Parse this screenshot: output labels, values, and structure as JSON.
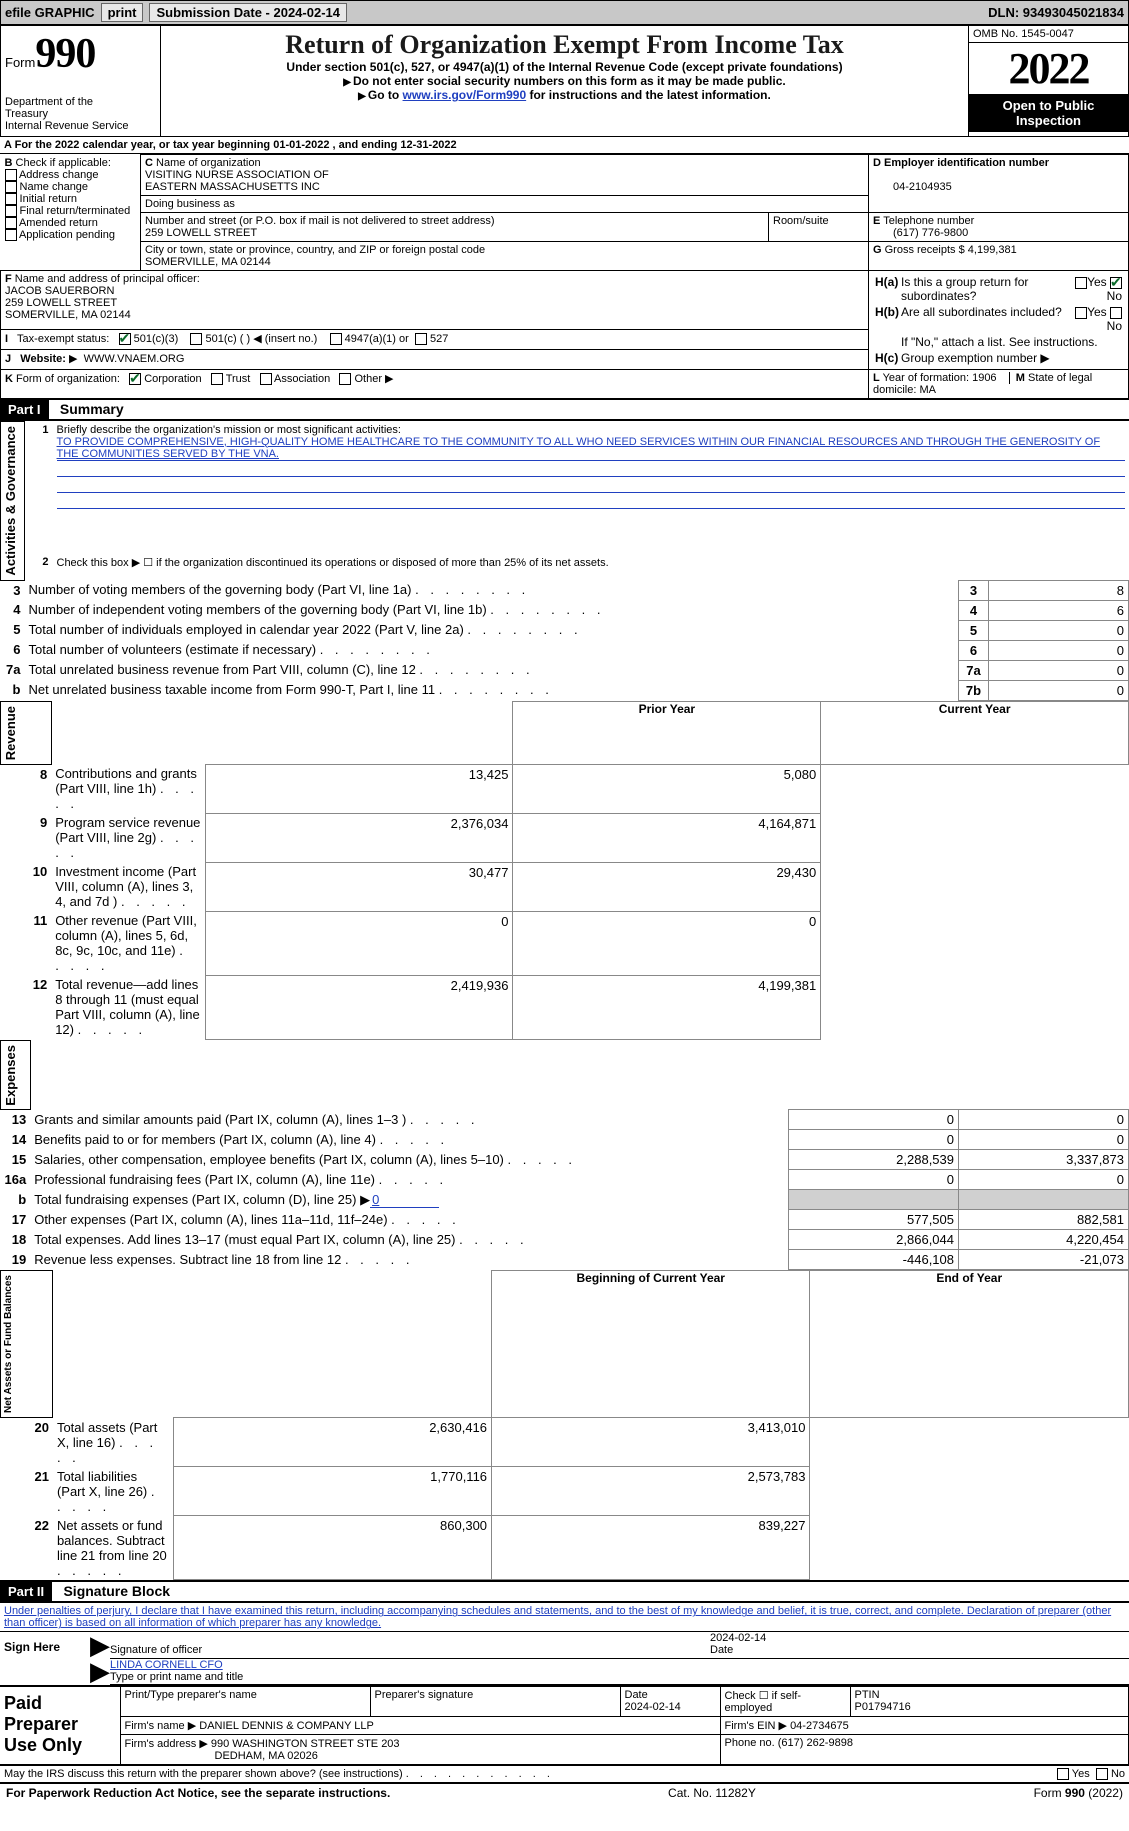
{
  "colors": {
    "link": "#2040c0",
    "black": "#000000",
    "grey_bar": "#c8c8c8",
    "grey_cell": "#d0d0d0",
    "check_green": "#0a6a2a"
  },
  "typography": {
    "serif": "Times New Roman",
    "sans": "Arial",
    "title_pt": 26,
    "year_pt": 44,
    "formnum_pt": 42,
    "body_pt": 12
  },
  "topbar": {
    "efile": "efile GRAPHIC",
    "print": "print",
    "submission_label": "Submission Date - 2024-02-14",
    "dln_label": "DLN: 93493045021834"
  },
  "header": {
    "form_word": "Form",
    "form_number": "990",
    "title": "Return of Organization Exempt From Income Tax",
    "subtitle": "Under section 501(c), 527, or 4947(a)(1) of the Internal Revenue Code (except private foundations)",
    "note1": "Do not enter social security numbers on this form as it may be made public.",
    "note2_pre": "Go to ",
    "note2_link": "www.irs.gov/Form990",
    "note2_post": " for instructions and the latest information.",
    "dept": "Department of the Treasury\nInternal Revenue Service",
    "omb": "OMB No. 1545-0047",
    "year": "2022",
    "open": "Open to Public Inspection"
  },
  "periodA": {
    "text_pre": "For the 2022 calendar year, or tax year beginning ",
    "begin": "01-01-2022",
    "mid": " , and ending ",
    "end": "12-31-2022"
  },
  "boxB": {
    "label": "Check if applicable:",
    "items": [
      "Address change",
      "Name change",
      "Initial return",
      "Final return/terminated",
      "Amended return",
      "Application pending"
    ],
    "prefix": "B"
  },
  "boxC": {
    "name_label": "Name of organization",
    "name1": "VISITING NURSE ASSOCIATION OF",
    "name2": "EASTERN MASSACHUSETTS INC",
    "dba_label": "Doing business as",
    "addr_label": "Number and street (or P.O. box if mail is not delivered to street address)",
    "room_label": "Room/suite",
    "street": "259 LOWELL STREET",
    "city_label": "City or town, state or province, country, and ZIP or foreign postal code",
    "city": "SOMERVILLE, MA  02144",
    "prefix": "C"
  },
  "boxD": {
    "label": "Employer identification number",
    "value": "04-2104935",
    "prefix": "D"
  },
  "boxE": {
    "label": "Telephone number",
    "value": "(617) 776-9800",
    "prefix": "E"
  },
  "boxG": {
    "label": "Gross receipts $",
    "value": "4,199,381",
    "prefix": "G"
  },
  "boxF": {
    "label": "Name and address of principal officer:",
    "name": "JACOB SAUERBORN",
    "street": "259 LOWELL STREET",
    "city": "SOMERVILLE, MA  02144",
    "prefix": "F"
  },
  "boxH": {
    "a_label": "Is this a group return for subordinates?",
    "b_label": "Are all subordinates included?",
    "b_note": "If \"No,\" attach a list. See instructions.",
    "c_label": "Group exemption number",
    "yes": "Yes",
    "no": "No",
    "a": "H(a)",
    "b": "H(b)",
    "c": "H(c)"
  },
  "boxI": {
    "label": "Tax-exempt status:",
    "opts": [
      "501(c)(3)",
      "501(c) (  ) ◀ (insert no.)",
      "4947(a)(1) or",
      "527"
    ],
    "prefix": "I"
  },
  "boxJ": {
    "label": "Website:",
    "value": "WWW.VNAEM.ORG",
    "prefix": "J"
  },
  "boxK": {
    "label": "Form of organization:",
    "opts": [
      "Corporation",
      "Trust",
      "Association",
      "Other"
    ],
    "prefix": "K"
  },
  "boxL": {
    "label": "Year of formation:",
    "value": "1906",
    "prefix": "L"
  },
  "boxM": {
    "label": "State of legal domicile:",
    "value": "MA",
    "prefix": "M"
  },
  "part1": {
    "label": "Part I",
    "title": "Summary",
    "q1": "Briefly describe the organization's mission or most significant activities:",
    "mission": "TO PROVIDE COMPREHENSIVE, HIGH-QUALITY HOME HEALTHCARE TO THE COMMUNITY TO ALL WHO NEED SERVICES WITHIN OUR FINANCIAL RESOURCES AND THROUGH THE GENEROSITY OF THE COMMUNITIES SERVED BY THE VNA.",
    "q2": "Check this box ▶ ☐  if the organization discontinued its operations or disposed of more than 25% of its net assets.",
    "side_act": "Activities & Governance",
    "side_rev": "Revenue",
    "side_exp": "Expenses",
    "side_net": "Net Assets or Fund Balances",
    "lines_simple": [
      {
        "n": "3",
        "t": "Number of voting members of the governing body (Part VI, line 1a)",
        "box": "3",
        "v": "8"
      },
      {
        "n": "4",
        "t": "Number of independent voting members of the governing body (Part VI, line 1b)",
        "box": "4",
        "v": "6"
      },
      {
        "n": "5",
        "t": "Total number of individuals employed in calendar year 2022 (Part V, line 2a)",
        "box": "5",
        "v": "0"
      },
      {
        "n": "6",
        "t": "Total number of volunteers (estimate if necessary)",
        "box": "6",
        "v": "0"
      },
      {
        "n": "7a",
        "t": "Total unrelated business revenue from Part VIII, column (C), line 12",
        "box": "7a",
        "v": "0"
      },
      {
        "n": "b",
        "t": "Net unrelated business taxable income from Form 990-T, Part I, line 11",
        "box": "7b",
        "v": "0"
      }
    ],
    "col_prior": "Prior Year",
    "col_current": "Current Year",
    "rev_lines": [
      {
        "n": "8",
        "t": "Contributions and grants (Part VIII, line 1h)",
        "p": "13,425",
        "c": "5,080"
      },
      {
        "n": "9",
        "t": "Program service revenue (Part VIII, line 2g)",
        "p": "2,376,034",
        "c": "4,164,871"
      },
      {
        "n": "10",
        "t": "Investment income (Part VIII, column (A), lines 3, 4, and 7d )",
        "p": "30,477",
        "c": "29,430"
      },
      {
        "n": "11",
        "t": "Other revenue (Part VIII, column (A), lines 5, 6d, 8c, 9c, 10c, and 11e)",
        "p": "0",
        "c": "0"
      },
      {
        "n": "12",
        "t": "Total revenue—add lines 8 through 11 (must equal Part VIII, column (A), line 12)",
        "p": "2,419,936",
        "c": "4,199,381"
      }
    ],
    "exp_lines": [
      {
        "n": "13",
        "t": "Grants and similar amounts paid (Part IX, column (A), lines 1–3 )",
        "p": "0",
        "c": "0"
      },
      {
        "n": "14",
        "t": "Benefits paid to or for members (Part IX, column (A), line 4)",
        "p": "0",
        "c": "0"
      },
      {
        "n": "15",
        "t": "Salaries, other compensation, employee benefits (Part IX, column (A), lines 5–10)",
        "p": "2,288,539",
        "c": "3,337,873"
      },
      {
        "n": "16a",
        "t": "Professional fundraising fees (Part IX, column (A), line 11e)",
        "p": "0",
        "c": "0"
      }
    ],
    "exp_b": {
      "n": "b",
      "t": "Total fundraising expenses (Part IX, column (D), line 25) ▶",
      "v": "0"
    },
    "exp_lines2": [
      {
        "n": "17",
        "t": "Other expenses (Part IX, column (A), lines 11a–11d, 11f–24e)",
        "p": "577,505",
        "c": "882,581"
      },
      {
        "n": "18",
        "t": "Total expenses. Add lines 13–17 (must equal Part IX, column (A), line 25)",
        "p": "2,866,044",
        "c": "4,220,454"
      },
      {
        "n": "19",
        "t": "Revenue less expenses. Subtract line 18 from line 12",
        "p": "-446,108",
        "c": "-21,073"
      }
    ],
    "col_begin": "Beginning of Current Year",
    "col_end": "End of Year",
    "net_lines": [
      {
        "n": "20",
        "t": "Total assets (Part X, line 16)",
        "p": "2,630,416",
        "c": "3,413,010"
      },
      {
        "n": "21",
        "t": "Total liabilities (Part X, line 26)",
        "p": "1,770,116",
        "c": "2,573,783"
      },
      {
        "n": "22",
        "t": "Net assets or fund balances. Subtract line 21 from line 20",
        "p": "860,300",
        "c": "839,227"
      }
    ]
  },
  "part2": {
    "label": "Part II",
    "title": "Signature Block",
    "decl": "Under penalties of perjury, I declare that I have examined this return, including accompanying schedules and statements, and to the best of my knowledge and belief, it is true, correct, and complete. Declaration of preparer (other than officer) is based on all information of which preparer has any knowledge.",
    "sign_here": "Sign Here",
    "sig_officer": "Signature of officer",
    "sig_date": "2024-02-14",
    "date_label": "Date",
    "officer_name": "LINDA CORNELL CFO",
    "type_name": "Type or print name and title",
    "paid": "Paid Preparer Use Only",
    "prep_name_lbl": "Print/Type preparer's name",
    "prep_sig_lbl": "Preparer's signature",
    "prep_date_lbl": "Date",
    "prep_date": "2024-02-14",
    "check_self": "Check ☐ if self-employed",
    "ptin_lbl": "PTIN",
    "ptin": "P01794716",
    "firm_name_lbl": "Firm's name   ▶",
    "firm_name": "DANIEL DENNIS & COMPANY LLP",
    "firm_ein_lbl": "Firm's EIN ▶",
    "firm_ein": "04-2734675",
    "firm_addr_lbl": "Firm's address ▶",
    "firm_addr1": "990 WASHINGTON STREET STE 203",
    "firm_addr2": "DEDHAM, MA  02026",
    "phone_lbl": "Phone no.",
    "phone": "(617) 262-9898",
    "discuss": "May the IRS discuss this return with the preparer shown above? (see instructions)"
  },
  "footer": {
    "pra": "For Paperwork Reduction Act Notice, see the separate instructions.",
    "cat": "Cat. No. 11282Y",
    "form": "Form 990 (2022)"
  }
}
